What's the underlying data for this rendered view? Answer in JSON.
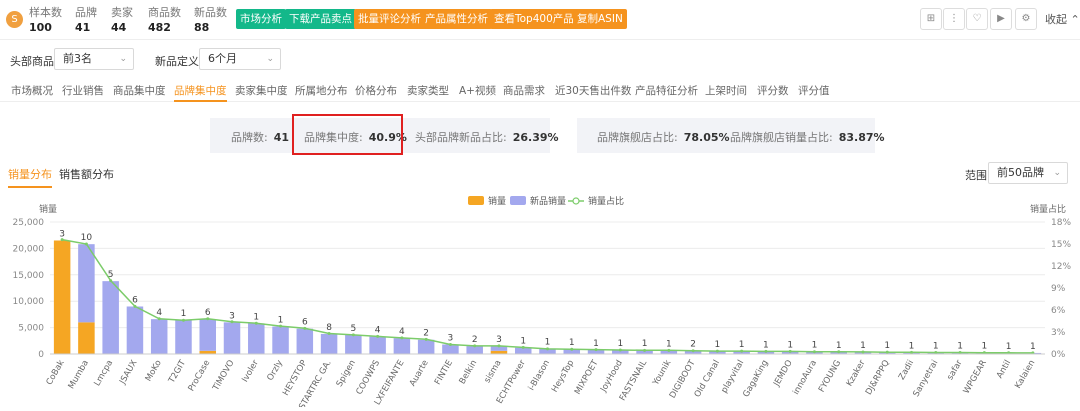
{
  "header": {
    "logo_glyph": "S",
    "stats": [
      {
        "label": "样本数",
        "value": "100"
      },
      {
        "label": "品牌",
        "value": "41"
      },
      {
        "label": "卖家",
        "value": "44"
      },
      {
        "label": "商品数",
        "value": "482"
      },
      {
        "label": "新品数",
        "value": "88"
      }
    ],
    "buttons": [
      {
        "label": "市场分析",
        "color": "green"
      },
      {
        "label": "下载产品卖点",
        "color": "green"
      },
      {
        "label": "批量评论分析",
        "color": "orange"
      },
      {
        "label": "产品属性分析",
        "color": "orange"
      },
      {
        "label": "查看Top400产品",
        "color": "orange"
      },
      {
        "label": "复制ASIN",
        "color": "orange"
      }
    ],
    "icons": [
      "grid-icon",
      "more-icon",
      "heart-icon",
      "video-icon",
      "gear-icon"
    ],
    "icon_glyphs": [
      "⊞",
      "⋮",
      "♡",
      "▶",
      "⚙"
    ],
    "collapse_label": "收起",
    "collapse_caret": "⌃"
  },
  "filters": {
    "top_products_label": "头部商品",
    "top_products_value": "前3名",
    "new_def_label": "新品定义",
    "new_def_value": "6个月",
    "caret": "⌄"
  },
  "tabs": [
    "市场概况",
    "行业销售",
    "商品集中度",
    "品牌集中度",
    "卖家集中度",
    "所属地分布",
    "价格分布",
    "卖家类型",
    "A+视频",
    "商品需求",
    "近30天售出件数",
    "产品特征分析",
    "上架时间",
    "评分数",
    "评分值"
  ],
  "active_tab": "品牌集中度",
  "summary": {
    "brand_count_label": "品牌数:",
    "brand_count": "41",
    "concentration_label": "品牌集中度:",
    "concentration": "40.9%",
    "top_new_label": "头部品牌新品占比:",
    "top_new": "26.39%",
    "flagship_label": "品牌旗舰店占比:",
    "flagship": "78.05%",
    "flagship_sales_label": "品牌旗舰店销量占比:",
    "flagship_sales": "83.87%"
  },
  "subtabs": [
    "销量分布",
    "销售额分布"
  ],
  "range": {
    "label": "范围",
    "value": "前50品牌"
  },
  "colors": {
    "sales": "#f5a623",
    "new_sales": "#a3a8ee",
    "ratio": "#7ccc6a",
    "accent": "#f5931e"
  },
  "chart_data": {
    "type": "bar",
    "legend": [
      "销量",
      "新品销量",
      "销量占比"
    ],
    "ylabel": "销量",
    "y2label": "销量占比",
    "ylim": [
      0,
      25000
    ],
    "y2lim": [
      0,
      18
    ],
    "yticks": [
      "0",
      "5,000",
      "10,000",
      "15,000",
      "20,000",
      "25,000"
    ],
    "y2ticks": [
      "0%",
      "3%",
      "6%",
      "9%",
      "12%",
      "15%",
      "18%"
    ],
    "categories": [
      "CoBak",
      "Mumba",
      "Lmcpa",
      "JSAUX",
      "MoKo",
      "T2GIT",
      "ProCase",
      "TiMOVO",
      "Ivoler",
      "Orzly",
      "HEYSTOP",
      "STARTRC GA.",
      "Spigen",
      "COOWPS",
      "LXFEIFANTE",
      "Auarte",
      "FINTIE",
      "Belkin",
      "sisma",
      "ECHTPower",
      "i-Blason",
      "HeysTop",
      "MIXPOET",
      "JoyHood",
      "FASTSNAIL",
      "Younik",
      "DIGIBOOT",
      "Old Canal",
      "playvital",
      "GagaKing",
      "JEMDO",
      "innoAura",
      "FYOUNG",
      "Kzaker",
      "DJ&RPPQ",
      "Zadii",
      "Sanyetrai",
      "safar",
      "WPGEAR",
      "Antil",
      "Kalaien"
    ],
    "counts": [
      3,
      10,
      5,
      6,
      4,
      1,
      6,
      3,
      1,
      1,
      6,
      8,
      5,
      4,
      4,
      2,
      3,
      2,
      3,
      1,
      1,
      1,
      1,
      1,
      1,
      1,
      2,
      1,
      1,
      1,
      1,
      1,
      1,
      1,
      1,
      1,
      1,
      1,
      1,
      1,
      1
    ],
    "series": [
      {
        "name": "销量",
        "values": [
          21500,
          6000,
          0,
          0,
          0,
          0,
          600,
          0,
          0,
          0,
          0,
          0,
          0,
          0,
          0,
          0,
          0,
          0,
          600,
          0,
          0,
          0,
          0,
          0,
          0,
          0,
          0,
          0,
          0,
          0,
          0,
          0,
          0,
          0,
          0,
          0,
          0,
          0,
          0,
          0,
          0
        ]
      },
      {
        "name": "新品销量",
        "values": [
          0,
          14800,
          13800,
          9000,
          6600,
          6400,
          6000,
          6000,
          5800,
          5200,
          4800,
          3800,
          3600,
          3300,
          3000,
          2700,
          1800,
          1500,
          900,
          1200,
          1000,
          900,
          800,
          800,
          750,
          700,
          650,
          600,
          550,
          500,
          480,
          450,
          420,
          380,
          350,
          320,
          300,
          280,
          250,
          230,
          200
        ]
      },
      {
        "name": "销量占比",
        "values": [
          15.6,
          15.0,
          10.0,
          6.5,
          4.8,
          4.6,
          4.8,
          4.4,
          4.2,
          3.8,
          3.5,
          2.8,
          2.6,
          2.4,
          2.2,
          2.0,
          1.3,
          1.1,
          1.1,
          0.9,
          0.7,
          0.65,
          0.6,
          0.55,
          0.5,
          0.5,
          0.45,
          0.4,
          0.4,
          0.35,
          0.35,
          0.3,
          0.3,
          0.28,
          0.25,
          0.23,
          0.2,
          0.2,
          0.18,
          0.17,
          0.15
        ]
      }
    ]
  }
}
